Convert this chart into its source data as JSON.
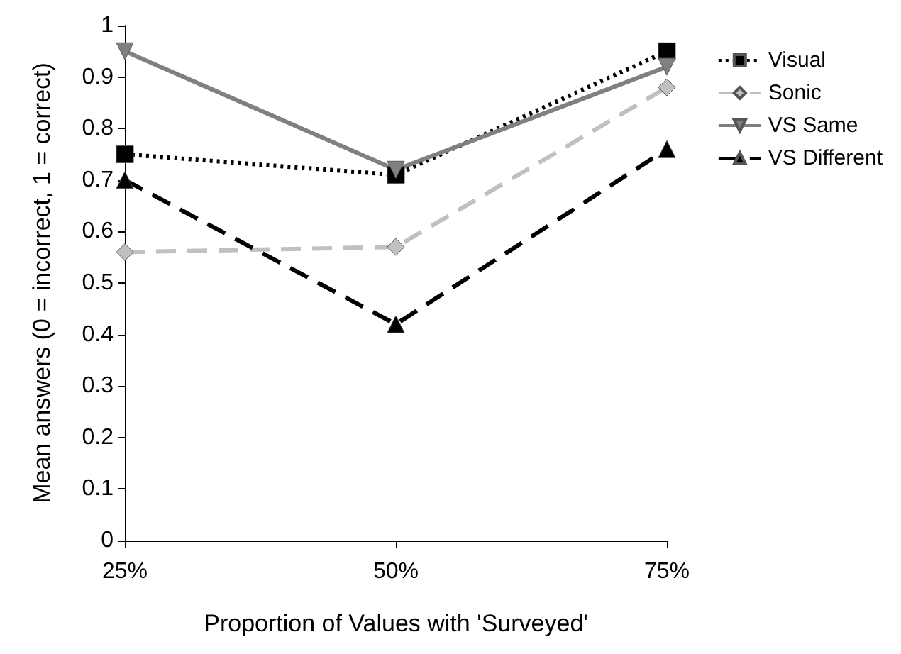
{
  "chart_data": {
    "type": "line",
    "xlabel": "Proportion of Values with 'Surveyed'",
    "ylabel": "Mean answers (0 = incorrect, 1 = correct)",
    "categories": [
      "25%",
      "50%",
      "75%"
    ],
    "series": [
      {
        "name": "Visual",
        "color": "#000000",
        "values": [
          0.75,
          0.71,
          0.95
        ],
        "marker": "square",
        "line_style": "dotted"
      },
      {
        "name": "Sonic",
        "color": "#c0c0c0",
        "values": [
          0.56,
          0.57,
          0.88
        ],
        "marker": "diamond",
        "line_style": "dashed"
      },
      {
        "name": "VS Same",
        "color": "#808080",
        "values": [
          0.95,
          0.72,
          0.92
        ],
        "marker": "triangle-down",
        "line_style": "solid"
      },
      {
        "name": "VS Different",
        "color": "#000000",
        "values": [
          0.7,
          0.42,
          0.76
        ],
        "marker": "triangle",
        "line_style": "dashed"
      }
    ],
    "ylim": [
      0,
      1
    ],
    "yticks": [
      0,
      0.1,
      0.2,
      0.3,
      0.4,
      0.5,
      0.6,
      0.7,
      0.8,
      0.9,
      1
    ],
    "grid": false,
    "legend": "right"
  }
}
